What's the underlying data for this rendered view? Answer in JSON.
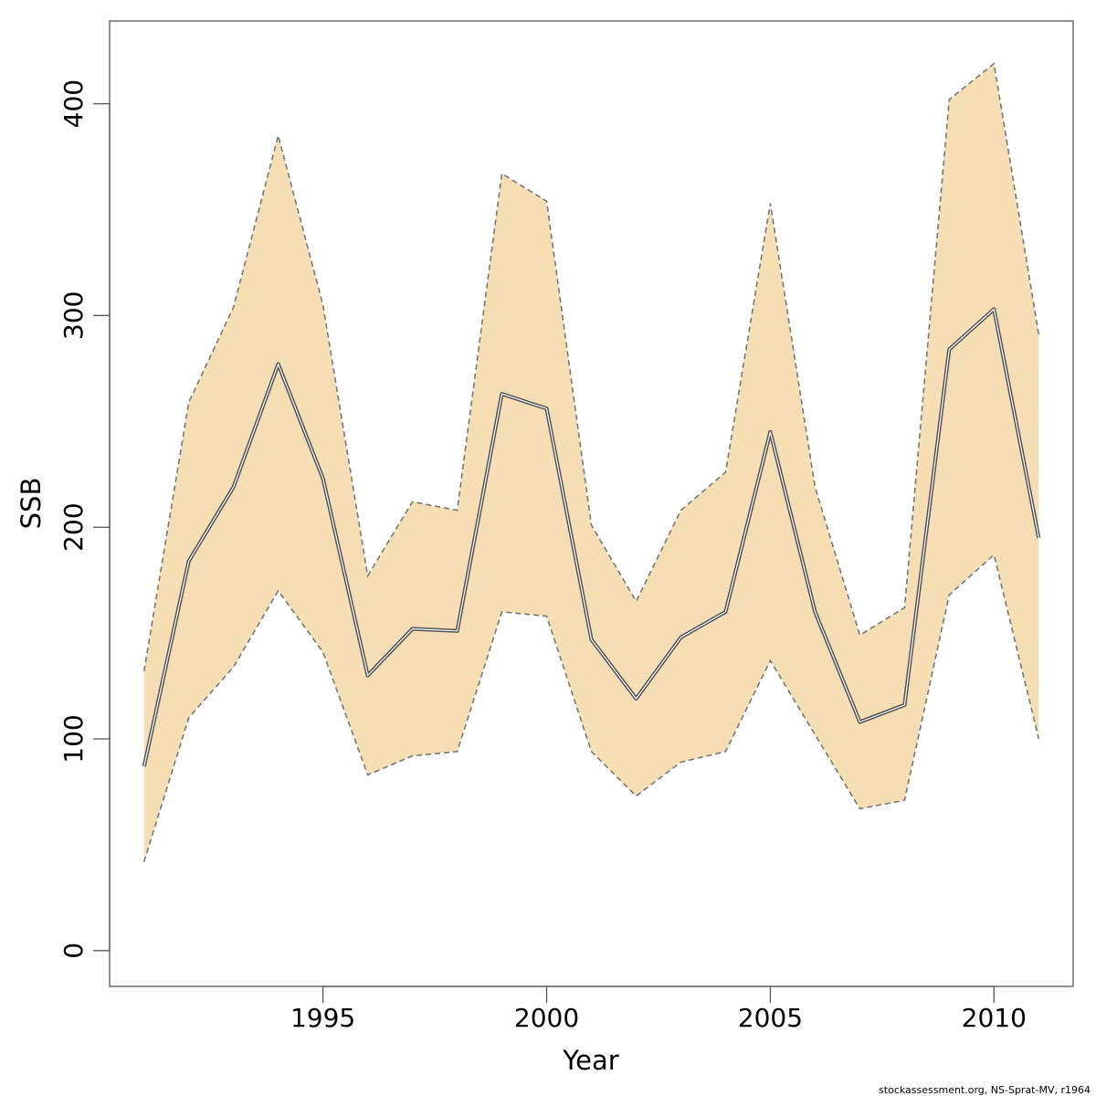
{
  "chart_data": {
    "type": "area",
    "title": "",
    "xlabel": "Year",
    "ylabel": "SSB",
    "xlim": [
      1990.23,
      2011.77
    ],
    "ylim": [
      -16.9,
      439.1
    ],
    "x_ticks": [
      1995,
      2000,
      2005,
      2010
    ],
    "y_ticks": [
      0,
      100,
      200,
      300,
      400
    ],
    "grid": false,
    "legend": "none",
    "source_note": "stockassessment.org, NS-Sprat-MV, r1964",
    "x": [
      1991,
      1992,
      1993,
      1994,
      1995,
      1996,
      1997,
      1998,
      1999,
      2000,
      2001,
      2002,
      2003,
      2004,
      2005,
      2006,
      2007,
      2008,
      2009,
      2010,
      2011
    ],
    "series": [
      {
        "role": "estimate",
        "values": [
          87,
          184,
          219,
          277,
          223,
          130,
          152,
          151,
          263,
          256,
          147,
          119,
          148,
          160,
          245,
          160,
          108,
          116,
          284,
          303,
          195
        ]
      },
      {
        "role": "upper",
        "values": [
          132,
          259,
          304,
          385,
          305,
          177,
          212,
          208,
          367,
          354,
          201,
          165,
          208,
          226,
          353,
          219,
          149,
          162,
          402,
          419,
          291
        ]
      },
      {
        "role": "lower",
        "values": [
          42,
          110,
          134,
          170,
          141,
          83,
          92,
          94,
          160,
          158,
          94,
          73,
          89,
          94,
          137,
          102,
          67,
          71,
          168,
          187,
          100
        ]
      }
    ],
    "colors": {
      "band": "#f5deb3",
      "line": "#555555",
      "bound": "#777777",
      "frame": "#555555"
    }
  }
}
